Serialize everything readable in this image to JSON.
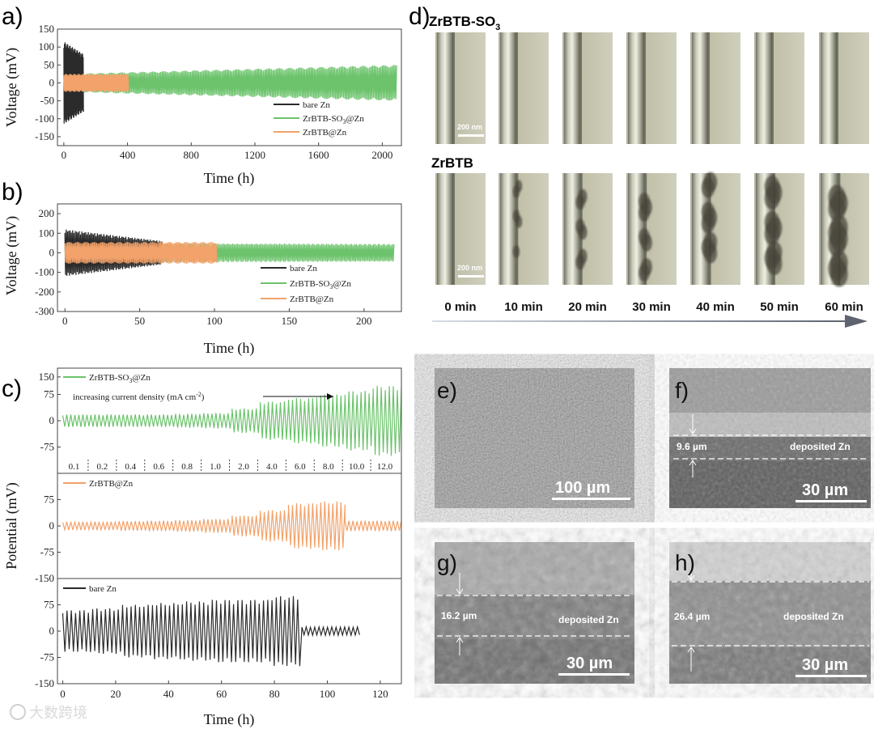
{
  "panel_labels": {
    "a": "a)",
    "b": "b)",
    "c": "c)",
    "d": "d)",
    "e": "e)",
    "f": "f)",
    "g": "g)",
    "h": "h)"
  },
  "colors": {
    "bare_zn": "#2b2b2b",
    "zrbtb_so3": "#6cc36c",
    "zrbtb": "#f2a26a"
  },
  "chart_data": [
    {
      "id": "a",
      "type": "line",
      "xlabel": "Time (h)",
      "ylabel": "Voltage (mV)",
      "xlim": [
        -40,
        2120
      ],
      "ylim": [
        -175,
        150
      ],
      "xticks": [
        "0",
        "400",
        "800",
        "1200",
        "1600",
        "2000"
      ],
      "yticks": [
        "150",
        "100",
        "50",
        "0",
        "-50",
        "-100",
        "-150"
      ],
      "series": [
        {
          "name": "bare Zn",
          "x_range": [
            0,
            125
          ],
          "amplitude_mV": [
            115,
            80
          ]
        },
        {
          "name": "ZrBTB-SO3@Zn",
          "x_range": [
            0,
            2090
          ],
          "amplitude_mV": [
            25,
            50
          ]
        },
        {
          "name": "ZrBTB@Zn",
          "x_range": [
            0,
            410
          ],
          "amplitude_mV": [
            25,
            25
          ]
        }
      ],
      "legend": {
        "position": "bottom-right",
        "entries": [
          {
            "pre": "bare Zn",
            "sub": "",
            "post": ""
          },
          {
            "pre": "ZrBTB-SO",
            "sub": "3",
            "post": "@Zn"
          },
          {
            "pre": "ZrBTB@Zn",
            "sub": "",
            "post": ""
          }
        ]
      }
    },
    {
      "id": "b",
      "type": "line",
      "xlabel": "Time (h)",
      "ylabel": "Voltage (mV)",
      "xlim": [
        -5,
        225
      ],
      "ylim": [
        -300,
        250
      ],
      "xticks": [
        "0",
        "50",
        "100",
        "150",
        "200"
      ],
      "yticks": [
        "200",
        "100",
        "0",
        "-100",
        "-200",
        "-300"
      ],
      "series": [
        {
          "name": "bare Zn",
          "x_range": [
            0,
            65
          ],
          "amplitude_mV": [
            120,
            60
          ]
        },
        {
          "name": "ZrBTB-SO3@Zn",
          "x_range": [
            0,
            220
          ],
          "amplitude_mV": [
            50,
            45
          ]
        },
        {
          "name": "ZrBTB@Zn",
          "x_range": [
            0,
            102
          ],
          "amplitude_mV": [
            55,
            55
          ]
        }
      ],
      "legend": {
        "position": "bottom-right",
        "entries": [
          {
            "pre": "bare Zn",
            "sub": "",
            "post": ""
          },
          {
            "pre": "ZrBTB-SO",
            "sub": "3",
            "post": "@Zn"
          },
          {
            "pre": "ZrBTB@Zn",
            "sub": "",
            "post": ""
          }
        ]
      }
    },
    {
      "id": "c",
      "type": "line",
      "xlabel": "Time (h)",
      "ylabel": "Potential (mV)",
      "xlim": [
        -2,
        128
      ],
      "ylim": [
        -150,
        150
      ],
      "xticks": [
        "0",
        "20",
        "40",
        "60",
        "80",
        "100",
        "120"
      ],
      "yticks": [
        "150",
        "75",
        "0",
        "-75",
        "-150"
      ],
      "annotation": {
        "pre": "increasing current density (mA cm",
        "sup": "-2",
        "post": ")"
      },
      "current_densities": [
        "0.1",
        "0.2",
        "0.4",
        "0.6",
        "0.8",
        "1.0",
        "2.0",
        "4.0",
        "6.0",
        "8.0",
        "10.0",
        "12.0"
      ],
      "subplots": [
        {
          "name": "ZrBTB-SO3@Zn",
          "label_pre": "ZrBTB-SO",
          "label_sub": "3",
          "label_post": "@Zn",
          "x_range": [
            0,
            128
          ],
          "amplitudes_mV": [
            18,
            18,
            18,
            18,
            20,
            22,
            35,
            55,
            65,
            75,
            85,
            100
          ]
        },
        {
          "name": "ZrBTB@Zn",
          "label_pre": "ZrBTB@Zn",
          "label_sub": "",
          "label_post": "",
          "x_range": [
            0,
            128
          ],
          "amplitudes_mV": [
            12,
            12,
            14,
            15,
            17,
            20,
            30,
            45,
            65,
            70,
            15,
            15
          ]
        },
        {
          "name": "bare Zn",
          "label_pre": "bare Zn",
          "label_sub": "",
          "label_post": "",
          "x_range": [
            0,
            113
          ],
          "amplitudes_mV": [
            60,
            65,
            75,
            80,
            85,
            90,
            90,
            100,
            12,
            12
          ]
        }
      ]
    }
  ],
  "panel_d": {
    "row1_title_pre": "ZrBTB-SO",
    "row1_title_sub": "3",
    "row2_title": "ZrBTB",
    "scale_bar": "200 nm",
    "time_labels": [
      "0 min",
      "10 min",
      "20 min",
      "30 min",
      "40 min",
      "50 min",
      "60 min"
    ]
  },
  "sem": {
    "e": {
      "scale": "100 µm"
    },
    "f": {
      "scale": "30 µm",
      "thickness": "9.6 µm",
      "deposit": "deposited Zn"
    },
    "g": {
      "scale": "30 µm",
      "thickness": "16.2 µm",
      "deposit": "deposited Zn"
    },
    "h": {
      "scale": "30 µm",
      "thickness": "26.4 µm",
      "deposit": "deposited Zn"
    }
  },
  "watermark": "大数跨境"
}
